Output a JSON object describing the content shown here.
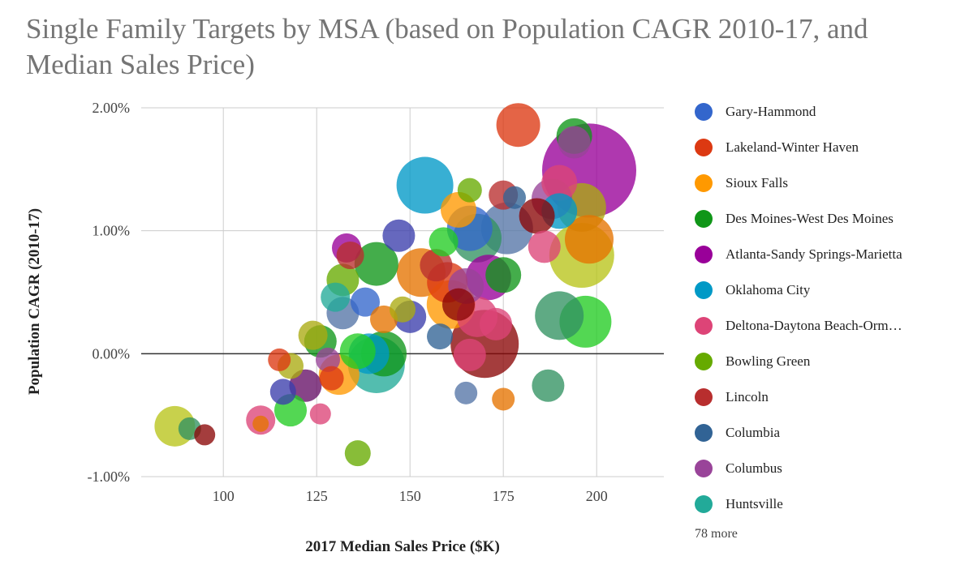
{
  "chart_data": {
    "type": "bubble",
    "title": "Single Family Targets by MSA (based on Population CAGR 2010-17, and Median Sales Price)",
    "xlabel": "2017 Median Sales Price ($K)",
    "ylabel": "Population CAGR (2010-17)",
    "xlim": [
      78,
      218
    ],
    "ylim": [
      -1.0,
      2.0
    ],
    "x_ticks": [
      100,
      125,
      150,
      175,
      200
    ],
    "y_ticks": [
      {
        "value": 2.0,
        "label": "2.00%"
      },
      {
        "value": 1.0,
        "label": "1.00%"
      },
      {
        "value": 0.0,
        "label": "0.00%"
      },
      {
        "value": -1.0,
        "label": "-1.00%"
      }
    ],
    "grid": true,
    "legend_position": "right",
    "legend": [
      {
        "name": "Gary-Hammond",
        "color": "#3366cc"
      },
      {
        "name": "Lakeland-Winter Haven",
        "color": "#dc3912"
      },
      {
        "name": "Sioux Falls",
        "color": "#ff9900"
      },
      {
        "name": "Des Moines-West Des Moines",
        "color": "#109618"
      },
      {
        "name": "Atlanta-Sandy Springs-Marietta",
        "color": "#990099"
      },
      {
        "name": "Oklahoma City",
        "color": "#0099c6"
      },
      {
        "name": "Deltona-Daytona Beach-Orm…",
        "color": "#dd4477"
      },
      {
        "name": "Bowling Green",
        "color": "#66aa00"
      },
      {
        "name": "Lincoln",
        "color": "#b82e2e"
      },
      {
        "name": "Columbia",
        "color": "#316395"
      },
      {
        "name": "Columbus",
        "color": "#994499"
      },
      {
        "name": "Huntsville",
        "color": "#22aa99"
      }
    ],
    "more_label": "78 more",
    "points": [
      {
        "x": 179,
        "y": 1.86,
        "r": 27,
        "color": "#dc3912"
      },
      {
        "x": 194,
        "y": 1.77,
        "r": 22,
        "color": "#109618"
      },
      {
        "x": 194,
        "y": 1.72,
        "r": 20,
        "color": "#994499"
      },
      {
        "x": 198,
        "y": 1.49,
        "r": 58,
        "color": "#990099"
      },
      {
        "x": 154,
        "y": 1.37,
        "r": 35,
        "color": "#0099c6"
      },
      {
        "x": 166,
        "y": 1.33,
        "r": 15,
        "color": "#66aa00"
      },
      {
        "x": 175,
        "y": 1.29,
        "r": 18,
        "color": "#b82e2e"
      },
      {
        "x": 178,
        "y": 1.27,
        "r": 14,
        "color": "#316395"
      },
      {
        "x": 190,
        "y": 1.39,
        "r": 22,
        "color": "#dd4477"
      },
      {
        "x": 188,
        "y": 1.26,
        "r": 25,
        "color": "#994499"
      },
      {
        "x": 190,
        "y": 1.16,
        "r": 22,
        "color": "#0099c6"
      },
      {
        "x": 196,
        "y": 1.19,
        "r": 30,
        "color": "#aaaa11"
      },
      {
        "x": 163,
        "y": 1.17,
        "r": 22,
        "color": "#ff9900"
      },
      {
        "x": 166,
        "y": 1.02,
        "r": 28,
        "color": "#3366cc"
      },
      {
        "x": 168,
        "y": 0.94,
        "r": 30,
        "color": "#329262"
      },
      {
        "x": 176,
        "y": 1.02,
        "r": 32,
        "color": "#5574a6"
      },
      {
        "x": 184,
        "y": 1.12,
        "r": 22,
        "color": "#8b0707"
      },
      {
        "x": 198,
        "y": 0.93,
        "r": 30,
        "color": "#e67300"
      },
      {
        "x": 196,
        "y": 0.8,
        "r": 40,
        "color": "#b8c41a"
      },
      {
        "x": 186,
        "y": 0.87,
        "r": 20,
        "color": "#dd4477"
      },
      {
        "x": 147,
        "y": 0.96,
        "r": 20,
        "color": "#3b3eac"
      },
      {
        "x": 159,
        "y": 0.91,
        "r": 18,
        "color": "#22cc22"
      },
      {
        "x": 133,
        "y": 0.86,
        "r": 18,
        "color": "#990099"
      },
      {
        "x": 134,
        "y": 0.8,
        "r": 17,
        "color": "#b82e2e"
      },
      {
        "x": 141,
        "y": 0.73,
        "r": 27,
        "color": "#109618"
      },
      {
        "x": 157,
        "y": 0.72,
        "r": 20,
        "color": "#b82e2e"
      },
      {
        "x": 153,
        "y": 0.66,
        "r": 30,
        "color": "#e67300"
      },
      {
        "x": 160,
        "y": 0.58,
        "r": 25,
        "color": "#dc3912"
      },
      {
        "x": 165,
        "y": 0.55,
        "r": 22,
        "color": "#994499"
      },
      {
        "x": 171,
        "y": 0.62,
        "r": 28,
        "color": "#990099"
      },
      {
        "x": 175,
        "y": 0.64,
        "r": 22,
        "color": "#109618"
      },
      {
        "x": 132,
        "y": 0.6,
        "r": 20,
        "color": "#66aa00"
      },
      {
        "x": 130,
        "y": 0.46,
        "r": 18,
        "color": "#22aa99"
      },
      {
        "x": 138,
        "y": 0.42,
        "r": 18,
        "color": "#3366cc"
      },
      {
        "x": 132,
        "y": 0.33,
        "r": 20,
        "color": "#5574a6"
      },
      {
        "x": 148,
        "y": 0.36,
        "r": 16,
        "color": "#aaaa11"
      },
      {
        "x": 150,
        "y": 0.3,
        "r": 20,
        "color": "#3b3eac"
      },
      {
        "x": 161,
        "y": 0.4,
        "r": 30,
        "color": "#ff9900"
      },
      {
        "x": 163,
        "y": 0.4,
        "r": 20,
        "color": "#8b0707"
      },
      {
        "x": 168,
        "y": 0.3,
        "r": 25,
        "color": "#dd4477"
      },
      {
        "x": 173,
        "y": 0.24,
        "r": 20,
        "color": "#dd4477"
      },
      {
        "x": 190,
        "y": 0.31,
        "r": 30,
        "color": "#329262"
      },
      {
        "x": 197,
        "y": 0.26,
        "r": 32,
        "color": "#22cc22"
      },
      {
        "x": 158,
        "y": 0.14,
        "r": 16,
        "color": "#316395"
      },
      {
        "x": 143,
        "y": 0.28,
        "r": 17,
        "color": "#e67300"
      },
      {
        "x": 124,
        "y": 0.15,
        "r": 18,
        "color": "#aaaa11"
      },
      {
        "x": 126,
        "y": 0.1,
        "r": 20,
        "color": "#109618"
      },
      {
        "x": 170,
        "y": 0.08,
        "r": 42,
        "color": "#8b0707"
      },
      {
        "x": 166,
        "y": -0.01,
        "r": 20,
        "color": "#dd4477"
      },
      {
        "x": 143,
        "y": 0.0,
        "r": 28,
        "color": "#109618"
      },
      {
        "x": 139,
        "y": 0.0,
        "r": 25,
        "color": "#0099c6"
      },
      {
        "x": 141,
        "y": -0.09,
        "r": 35,
        "color": "#22aa99"
      },
      {
        "x": 136,
        "y": 0.02,
        "r": 22,
        "color": "#22cc22"
      },
      {
        "x": 115,
        "y": -0.05,
        "r": 14,
        "color": "#dc3912"
      },
      {
        "x": 118,
        "y": -0.1,
        "r": 16,
        "color": "#aaaa11"
      },
      {
        "x": 128,
        "y": -0.05,
        "r": 15,
        "color": "#994499"
      },
      {
        "x": 131,
        "y": -0.17,
        "r": 25,
        "color": "#ff9900"
      },
      {
        "x": 129,
        "y": -0.2,
        "r": 15,
        "color": "#dc3912"
      },
      {
        "x": 122,
        "y": -0.26,
        "r": 20,
        "color": "#651067"
      },
      {
        "x": 116,
        "y": -0.31,
        "r": 16,
        "color": "#3b3eac"
      },
      {
        "x": 118,
        "y": -0.46,
        "r": 20,
        "color": "#22cc22"
      },
      {
        "x": 126,
        "y": -0.49,
        "r": 13,
        "color": "#dd4477"
      },
      {
        "x": 110,
        "y": -0.54,
        "r": 18,
        "color": "#dd4477"
      },
      {
        "x": 110,
        "y": -0.57,
        "r": 10,
        "color": "#e67300"
      },
      {
        "x": 87,
        "y": -0.59,
        "r": 25,
        "color": "#b8c41a"
      },
      {
        "x": 91,
        "y": -0.61,
        "r": 14,
        "color": "#329262"
      },
      {
        "x": 95,
        "y": -0.66,
        "r": 13,
        "color": "#8b0707"
      },
      {
        "x": 136,
        "y": -0.81,
        "r": 16,
        "color": "#66aa00"
      },
      {
        "x": 165,
        "y": -0.32,
        "r": 14,
        "color": "#5574a6"
      },
      {
        "x": 175,
        "y": -0.37,
        "r": 14,
        "color": "#e67300"
      },
      {
        "x": 187,
        "y": -0.26,
        "r": 20,
        "color": "#329262"
      }
    ]
  }
}
